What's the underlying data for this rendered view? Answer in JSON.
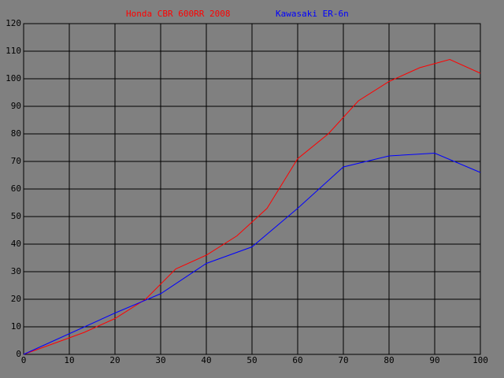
{
  "chart_data": {
    "type": "line",
    "series": [
      {
        "name": "Honda CBR 600RR 2008",
        "color": "#ff0000",
        "x": [
          0,
          6.7,
          13.3,
          20,
          26.7,
          33.3,
          40,
          46.7,
          53.3,
          60,
          66.7,
          73.3,
          80,
          86.7,
          93.3,
          100
        ],
        "values": [
          0,
          4,
          8,
          13,
          20,
          31,
          36,
          43,
          53,
          71,
          80,
          92,
          99,
          104,
          107,
          102
        ]
      },
      {
        "name": "Kawasaki ER-6n",
        "color": "#0000ff",
        "x": [
          0,
          10,
          20,
          30,
          40,
          50,
          60,
          70,
          80,
          90,
          100
        ],
        "values": [
          0,
          7.5,
          15,
          22,
          33,
          39,
          53,
          68,
          72,
          73,
          66
        ]
      }
    ],
    "xlim": [
      0,
      100
    ],
    "xticks": [
      0,
      10,
      20,
      30,
      40,
      50,
      60,
      70,
      80,
      90,
      100
    ],
    "ylim": [
      0,
      120
    ],
    "yticks": [
      0,
      10,
      20,
      30,
      40,
      50,
      60,
      70,
      80,
      90,
      100,
      110,
      120
    ],
    "grid": true
  }
}
